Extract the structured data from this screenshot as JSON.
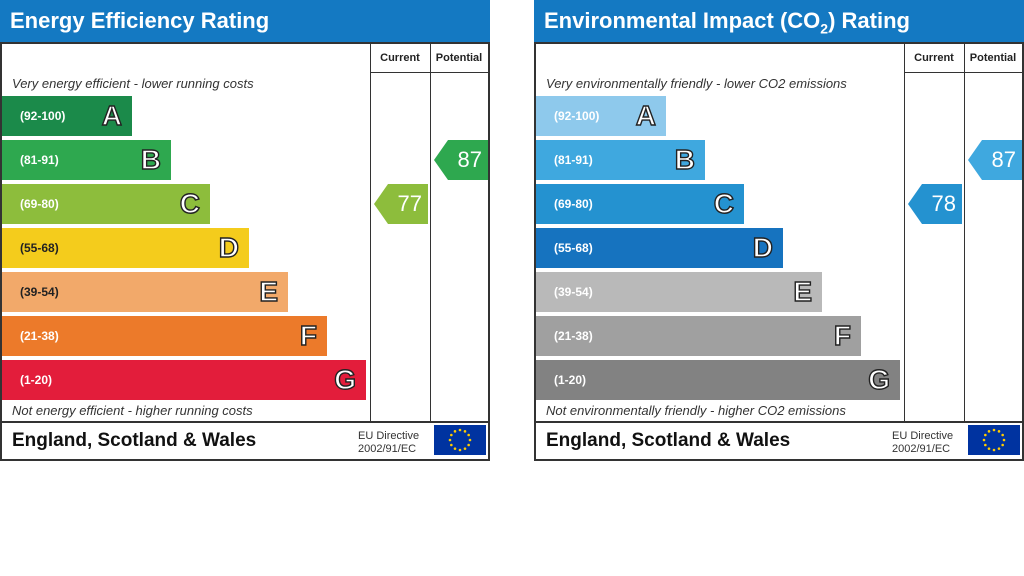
{
  "chart_data": [
    {
      "type": "bar",
      "title": "Energy Efficiency Rating",
      "columns": [
        "Current",
        "Potential"
      ],
      "top_text": "Very energy efficient - lower running costs",
      "bottom_text": "Not energy efficient - higher running costs",
      "categories": [
        "A",
        "B",
        "C",
        "D",
        "E",
        "F",
        "G"
      ],
      "ranges": [
        "(92-100)",
        "(81-91)",
        "(69-80)",
        "(55-68)",
        "(39-54)",
        "(21-38)",
        "(1-20)"
      ],
      "colors": [
        "#1b8a4a",
        "#2ea84f",
        "#8dbd3c",
        "#f4cc1c",
        "#f2a96a",
        "#ec7a2a",
        "#e31d3b"
      ],
      "current": {
        "value": 77,
        "band": "C",
        "color": "#8dbd3c"
      },
      "potential": {
        "value": 87,
        "band": "B",
        "color": "#2ea84f"
      },
      "region": "England, Scotland & Wales",
      "directive": [
        "EU Directive",
        "2002/91/EC"
      ],
      "header_color": "#1479c2"
    },
    {
      "type": "bar",
      "title": "Environmental Impact (CO2) Rating",
      "columns": [
        "Current",
        "Potential"
      ],
      "top_text": "Very environmentally friendly - lower CO2 emissions",
      "bottom_text": "Not environmentally friendly - higher CO2 emissions",
      "categories": [
        "A",
        "B",
        "C",
        "D",
        "E",
        "F",
        "G"
      ],
      "ranges": [
        "(92-100)",
        "(81-91)",
        "(69-80)",
        "(55-68)",
        "(39-54)",
        "(21-38)",
        "(1-20)"
      ],
      "colors": [
        "#8ec9ec",
        "#3fa8df",
        "#2492d0",
        "#1673bf",
        "#b9b9b9",
        "#a0a0a0",
        "#828282"
      ],
      "current": {
        "value": 78,
        "band": "C",
        "color": "#2492d0"
      },
      "potential": {
        "value": 87,
        "band": "B",
        "color": "#3fa8df"
      },
      "region": "England, Scotland & Wales",
      "directive": [
        "EU Directive",
        "2002/91/EC"
      ],
      "header_color": "#1479c2"
    }
  ]
}
